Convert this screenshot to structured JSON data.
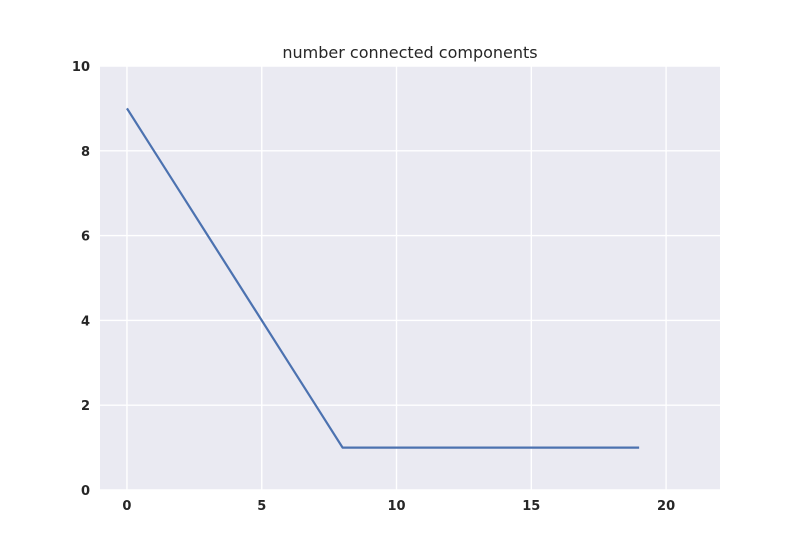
{
  "chart_data": {
    "type": "line",
    "title": "number connected components",
    "xlabel": "",
    "ylabel": "",
    "xlim": [
      -1,
      22
    ],
    "ylim": [
      0,
      10
    ],
    "xticks": [
      0,
      5,
      10,
      15,
      20
    ],
    "yticks": [
      0,
      2,
      4,
      6,
      8,
      10
    ],
    "grid": true,
    "colors": {
      "background": "#eaeaf2",
      "grid": "#ffffff",
      "line": "#4c72b0"
    },
    "series": [
      {
        "x": [
          0,
          1,
          2,
          3,
          4,
          5,
          6,
          7,
          8,
          9,
          10,
          11,
          12,
          13,
          14,
          15,
          16,
          17,
          18,
          19
        ],
        "values": [
          9,
          8,
          7,
          6,
          5,
          4,
          3,
          2,
          1,
          1,
          1,
          1,
          1,
          1,
          1,
          1,
          1,
          1,
          1,
          1
        ]
      }
    ]
  }
}
